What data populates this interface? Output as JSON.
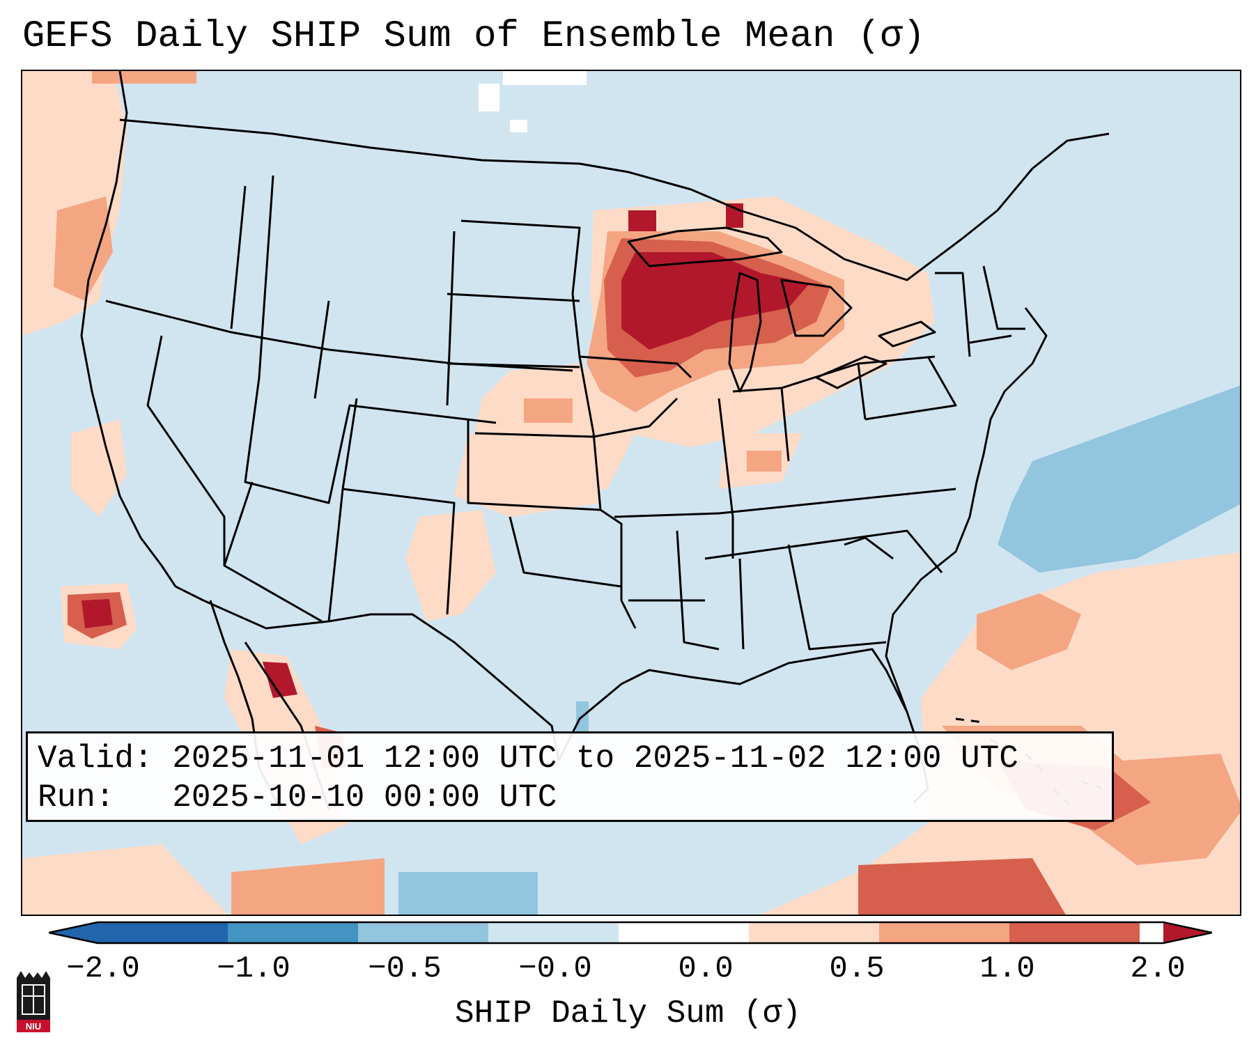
{
  "title": "GEFS Daily SHIP Sum of Ensemble Mean (σ)",
  "info_box": {
    "valid_label": "Valid:",
    "valid_value": "2025-11-01 12:00 UTC to 2025-11-02 12:00 UTC",
    "run_label": "Run:",
    "run_value": "2025-10-10 00:00 UTC"
  },
  "colorbar": {
    "label": "SHIP Daily Sum (σ)",
    "ticks": [
      "−2.0",
      "−1.0",
      "−0.5",
      "−0.0",
      "0.0",
      "0.5",
      "1.0",
      "2.0"
    ],
    "colors": [
      "#2166ac",
      "#4393c3",
      "#92c5de",
      "#d1e5f0",
      "#ffffff",
      "#fddbc7",
      "#f4a582",
      "#d6604d",
      "#b2182b"
    ]
  },
  "logo": {
    "text": "NIU",
    "icon": "niu-logo-icon"
  },
  "map": {
    "region": "Contiguous United States",
    "anomaly_colors": {
      "neutral": "#d1e5f0",
      "light_pos": "#fddbc7",
      "mid_pos": "#f4a582",
      "high_pos": "#d6604d",
      "max_pos": "#b2182b",
      "light_neg": "#92c5de"
    }
  }
}
